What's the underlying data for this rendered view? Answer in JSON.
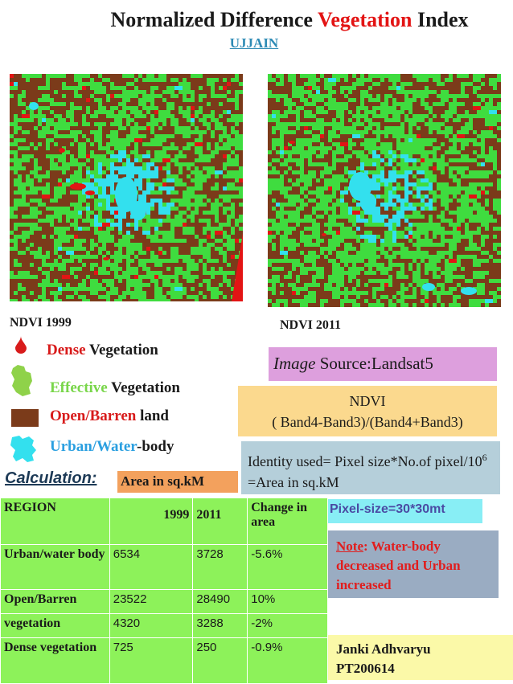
{
  "title": {
    "part1": "Normalized Difference ",
    "highlight": "Vegetation",
    "part2": " Index"
  },
  "subtitle": "UJJAIN",
  "maps": [
    {
      "caption": "NDVI  1999"
    },
    {
      "caption": "NDVI  2011"
    }
  ],
  "legend": {
    "dense": {
      "key": "Dense",
      "rest": " Vegetation"
    },
    "effective": {
      "key": "Effective",
      "rest": " Vegetation"
    },
    "open": {
      "key": "Open/Barren",
      "rest": " land"
    },
    "urban": {
      "key": "Urban/Water",
      "rest": "-body"
    }
  },
  "image_source": {
    "italic": "Image",
    "rest": " Source:Landsat5"
  },
  "ndvi_formula": {
    "line1": "NDVI",
    "line2": "( Band4-Band3)/(Band4+Band3)"
  },
  "identity": {
    "prefix": "Identity used= Pixel size*No.of pixel/10",
    "sup": "6",
    "suffix": " =Area in  sq.kM"
  },
  "calculation": {
    "label": "Calculation:",
    "unit": "Area in sq.kM"
  },
  "pixel_size": "Pixel-size=30*30mt",
  "note": {
    "label": "Note",
    "text": ": Water-body decreased and Urban increased"
  },
  "author": {
    "name": "Janki  Adhvaryu",
    "id": "PT200614"
  },
  "table": {
    "headers": [
      "REGION",
      "1999",
      "2011",
      "Change in area"
    ],
    "rows": [
      {
        "region": "Urban/water body",
        "y1999": "6534",
        "y2011": "3728",
        "change": "-5.6%"
      },
      {
        "region": "Open/Barren",
        "y1999": "23522",
        "y2011": "28490",
        "change": "10%"
      },
      {
        "region": "vegetation",
        "y1999": "4320",
        "y2011": "3288",
        "change": "-2%"
      },
      {
        "region": "Dense vegetation",
        "y1999": "725",
        "y2011": "250",
        "change": "-0.9%"
      }
    ]
  },
  "colors": {
    "dense": "#e31414",
    "effective": "#3fdc3f",
    "open": "#7b3b1a",
    "urban_water": "#33e0ee"
  }
}
